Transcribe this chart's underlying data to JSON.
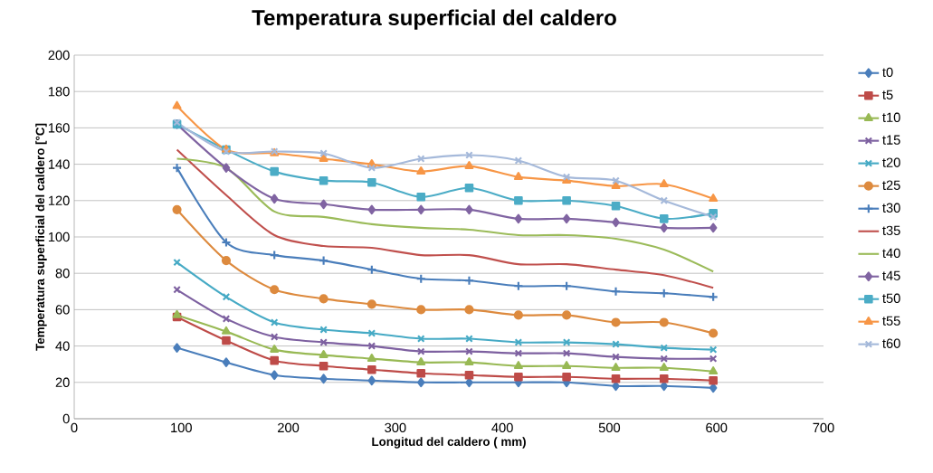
{
  "chart_data": {
    "type": "line",
    "title": "Temperatura superficial del caldero",
    "xlabel": "Longitud del caldero ( mm)",
    "ylabel": "Temperatura superficial del caldero [°C]",
    "x": [
      96,
      142,
      187,
      233,
      278,
      324,
      369,
      415,
      460,
      506,
      551,
      597
    ],
    "series": [
      {
        "name": "t0",
        "color": "#4a7ebb",
        "marker": "diamond",
        "values": [
          39,
          31,
          24,
          22,
          21,
          20,
          20,
          20,
          20,
          18,
          18,
          17
        ]
      },
      {
        "name": "t5",
        "color": "#be4b48",
        "marker": "square",
        "values": [
          56,
          43,
          32,
          29,
          27,
          25,
          24,
          23,
          23,
          22,
          22,
          21
        ]
      },
      {
        "name": "t10",
        "color": "#98b954",
        "marker": "triangle",
        "values": [
          57,
          48,
          38,
          35,
          33,
          31,
          31,
          29,
          29,
          28,
          28,
          26
        ]
      },
      {
        "name": "t15",
        "color": "#7d60a0",
        "marker": "cross",
        "values": [
          71,
          55,
          45,
          42,
          40,
          37,
          37,
          36,
          36,
          34,
          33,
          33
        ]
      },
      {
        "name": "t20",
        "color": "#46aac5",
        "marker": "cross",
        "values": [
          86,
          67,
          53,
          49,
          47,
          44,
          44,
          42,
          42,
          41,
          39,
          38
        ]
      },
      {
        "name": "t25",
        "color": "#dd8a3e",
        "marker": "circle",
        "values": [
          115,
          87,
          71,
          66,
          63,
          60,
          60,
          57,
          57,
          53,
          53,
          47
        ]
      },
      {
        "name": "t30",
        "color": "#4a7ebb",
        "marker": "plus",
        "values": [
          138,
          97,
          90,
          87,
          82,
          77,
          76,
          73,
          73,
          70,
          69,
          67
        ]
      },
      {
        "name": "t35",
        "color": "#c0504d",
        "marker": "none",
        "values": [
          148,
          123,
          101,
          95,
          94,
          90,
          90,
          85,
          85,
          82,
          79,
          72
        ]
      },
      {
        "name": "t40",
        "color": "#9bbb59",
        "marker": "none",
        "values": [
          143,
          138,
          114,
          111,
          107,
          105,
          104,
          101,
          101,
          99,
          93,
          81
        ]
      },
      {
        "name": "t45",
        "color": "#8064a2",
        "marker": "diamond",
        "values": [
          162,
          138,
          121,
          118,
          115,
          115,
          115,
          110,
          110,
          108,
          105,
          105
        ]
      },
      {
        "name": "t50",
        "color": "#4bacc6",
        "marker": "square",
        "values": [
          162,
          148,
          136,
          131,
          130,
          122,
          127,
          120,
          120,
          117,
          110,
          113
        ]
      },
      {
        "name": "t55",
        "color": "#f79646",
        "marker": "triangle",
        "values": [
          172,
          148,
          146,
          143,
          140,
          136,
          139,
          133,
          131,
          128,
          129,
          121
        ]
      },
      {
        "name": "t60",
        "color": "#a5b9da",
        "marker": "cross",
        "values": [
          163,
          147,
          147,
          146,
          138,
          143,
          145,
          142,
          133,
          131,
          120,
          111
        ]
      }
    ],
    "xlim": [
      0,
      700
    ],
    "xticks": [
      0,
      100,
      200,
      300,
      400,
      500,
      600,
      700
    ],
    "ylim": [
      0,
      200
    ],
    "yticks": [
      0,
      20,
      40,
      60,
      80,
      100,
      120,
      140,
      160,
      180,
      200
    ],
    "grid": "y",
    "legend": "right",
    "line_style": "solid"
  }
}
